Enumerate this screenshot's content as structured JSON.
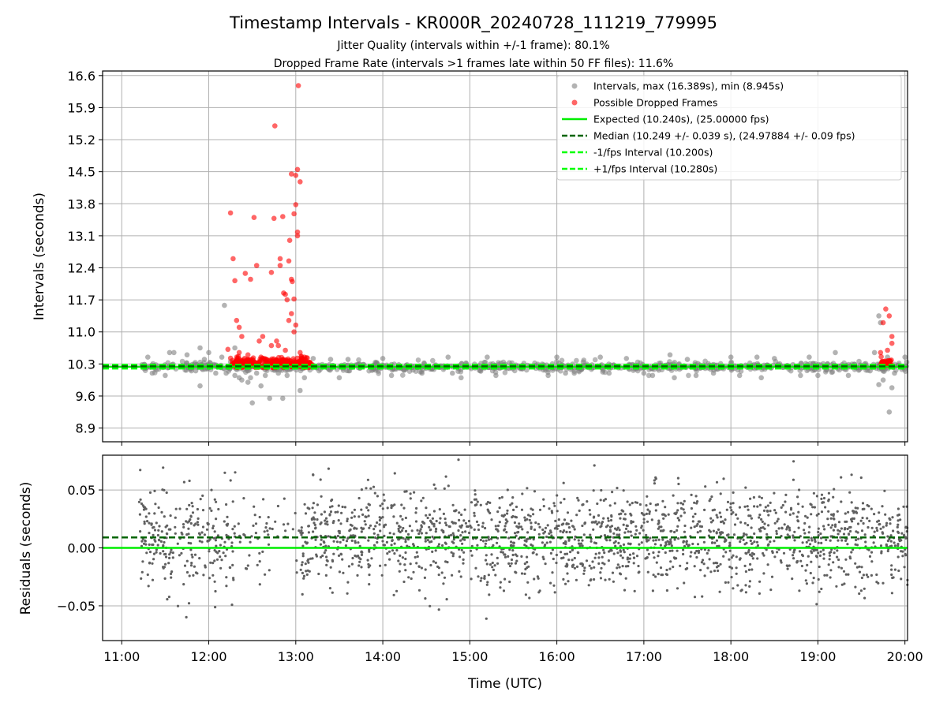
{
  "figure": {
    "title": "Timestamp Intervals - KR000R_20240728_111219_779995",
    "subtitle_1": "Jitter Quality (intervals within +/-1 frame): 80.1%",
    "subtitle_2": "Dropped Frame Rate (intervals >1 frames late within 50 FF files): 11.6%"
  },
  "colors": {
    "intervals": "#808080",
    "dropped": "#ff0000",
    "expected": "#00ee00",
    "median": "#006400",
    "fps_interval": "#00ff00",
    "residuals": "#606060"
  },
  "chart_data": [
    {
      "type": "scatter",
      "ylabel": "Intervals (seconds)",
      "xlim_hours": [
        10.78,
        20.03
      ],
      "ylim": [
        8.6,
        16.7
      ],
      "y_ticks": [
        8.9,
        9.6,
        10.3,
        11.0,
        11.7,
        12.4,
        13.1,
        13.8,
        14.5,
        15.2,
        15.9,
        16.6
      ],
      "y_tick_labels": [
        "8.9",
        "9.6",
        "10.3",
        "11.0",
        "11.7",
        "12.4",
        "13.1",
        "13.8",
        "14.5",
        "15.2",
        "15.9",
        "16.6"
      ],
      "grid": true,
      "legend_position": "top-right",
      "legend": [
        {
          "label": "Intervals, max (16.389s), min (8.945s)",
          "kind": "point",
          "color": "#808080"
        },
        {
          "label": "Possible Dropped Frames",
          "kind": "point",
          "color": "#ff0000"
        },
        {
          "label": "Expected (10.240s), (25.00000 fps)",
          "kind": "line",
          "color": "#00ee00"
        },
        {
          "label": "Median (10.249 +/- 0.039 s), (24.97884 +/- 0.09 fps)",
          "kind": "dashed",
          "color": "#006400"
        },
        {
          "label": "-1/fps Interval (10.200s)",
          "kind": "dashed",
          "color": "#00ff00"
        },
        {
          "label": "+1/fps Interval (10.280s)",
          "kind": "dashed",
          "color": "#00ff00"
        }
      ],
      "reference_lines": {
        "expected": 10.24,
        "median": 10.249,
        "minus_fps": 10.2,
        "plus_fps": 10.28
      },
      "series": [
        {
          "name": "Intervals",
          "style": "grey-point",
          "note_dense_band": {
            "start": 11.2,
            "end": 20.03,
            "center": 10.24,
            "spread": 0.08
          },
          "points": [
            [
              11.3,
              10.45
            ],
            [
              11.35,
              10.1
            ],
            [
              11.5,
              10.05
            ],
            [
              11.55,
              10.55
            ],
            [
              11.6,
              10.55
            ],
            [
              11.75,
              10.5
            ],
            [
              11.8,
              10.15
            ],
            [
              11.85,
              10.15
            ],
            [
              11.9,
              10.65
            ],
            [
              11.95,
              10.4
            ],
            [
              11.9,
              9.82
            ],
            [
              12.0,
              10.55
            ],
            [
              12.08,
              10.1
            ],
            [
              12.15,
              10.45
            ],
            [
              12.18,
              11.58
            ],
            [
              12.2,
              10.1
            ],
            [
              12.25,
              10.35
            ],
            [
              12.3,
              10.05
            ],
            [
              12.3,
              10.65
            ],
            [
              12.35,
              10.0
            ],
            [
              12.38,
              9.95
            ],
            [
              12.4,
              10.3
            ],
            [
              12.45,
              9.9
            ],
            [
              12.48,
              10.0
            ],
            [
              12.5,
              9.45
            ],
            [
              12.55,
              10.1
            ],
            [
              12.6,
              9.82
            ],
            [
              12.65,
              10.05
            ],
            [
              12.7,
              9.55
            ],
            [
              12.8,
              10.1
            ],
            [
              12.85,
              9.55
            ],
            [
              12.9,
              10.05
            ],
            [
              12.95,
              10.3
            ],
            [
              13.05,
              9.72
            ],
            [
              13.1,
              10.0
            ],
            [
              13.2,
              10.42
            ],
            [
              13.4,
              10.4
            ],
            [
              13.5,
              10.0
            ],
            [
              13.6,
              10.4
            ],
            [
              14.0,
              10.42
            ],
            [
              14.1,
              10.05
            ],
            [
              14.45,
              10.1
            ],
            [
              14.75,
              10.45
            ],
            [
              14.8,
              10.1
            ],
            [
              14.9,
              10.0
            ],
            [
              15.2,
              10.45
            ],
            [
              15.3,
              10.05
            ],
            [
              15.9,
              10.05
            ],
            [
              16.0,
              10.45
            ],
            [
              16.1,
              10.1
            ],
            [
              16.2,
              10.1
            ],
            [
              16.5,
              10.45
            ],
            [
              16.6,
              10.1
            ],
            [
              16.8,
              10.42
            ],
            [
              17.0,
              10.1
            ],
            [
              17.1,
              10.05
            ],
            [
              17.3,
              10.5
            ],
            [
              17.35,
              10.0
            ],
            [
              17.5,
              10.4
            ],
            [
              17.6,
              10.05
            ],
            [
              17.8,
              10.1
            ],
            [
              18.0,
              10.45
            ],
            [
              18.1,
              10.05
            ],
            [
              18.3,
              10.45
            ],
            [
              18.35,
              10.0
            ],
            [
              18.5,
              10.42
            ],
            [
              18.8,
              10.05
            ],
            [
              18.9,
              10.45
            ],
            [
              19.0,
              10.05
            ],
            [
              19.2,
              10.55
            ],
            [
              19.35,
              10.05
            ],
            [
              19.6,
              10.15
            ],
            [
              19.65,
              10.55
            ],
            [
              19.7,
              11.35
            ],
            [
              19.72,
              11.2
            ],
            [
              19.7,
              9.85
            ],
            [
              19.75,
              9.95
            ],
            [
              19.8,
              10.45
            ],
            [
              19.82,
              9.25
            ],
            [
              19.85,
              9.78
            ],
            [
              19.88,
              10.1
            ],
            [
              20.0,
              10.45
            ]
          ]
        },
        {
          "name": "Possible Dropped Frames",
          "style": "red-point",
          "note_dense_band": {
            "start": 12.25,
            "end": 13.2,
            "center": 10.32,
            "spread": 0.06
          },
          "points": [
            [
              12.22,
              10.62
            ],
            [
              12.25,
              13.6
            ],
            [
              12.28,
              12.6
            ],
            [
              12.3,
              12.12
            ],
            [
              12.32,
              11.25
            ],
            [
              12.35,
              11.1
            ],
            [
              12.38,
              10.9
            ],
            [
              12.42,
              12.28
            ],
            [
              12.48,
              12.15
            ],
            [
              12.52,
              13.5
            ],
            [
              12.55,
              12.45
            ],
            [
              12.58,
              10.8
            ],
            [
              12.62,
              10.9
            ],
            [
              12.72,
              12.3
            ],
            [
              12.75,
              13.48
            ],
            [
              12.76,
              15.5
            ],
            [
              12.78,
              10.8
            ],
            [
              12.8,
              10.7
            ],
            [
              12.82,
              12.6
            ],
            [
              12.82,
              12.45
            ],
            [
              12.85,
              13.52
            ],
            [
              12.86,
              11.85
            ],
            [
              12.88,
              11.82
            ],
            [
              12.9,
              11.7
            ],
            [
              12.92,
              12.55
            ],
            [
              12.93,
              13.0
            ],
            [
              12.95,
              12.15
            ],
            [
              12.96,
              12.1
            ],
            [
              12.95,
              14.45
            ],
            [
              12.98,
              11.72
            ],
            [
              12.98,
              13.58
            ],
            [
              13.0,
              13.78
            ],
            [
              13.0,
              14.42
            ],
            [
              13.0,
              11.15
            ],
            [
              13.02,
              13.1
            ],
            [
              13.02,
              13.18
            ],
            [
              13.02,
              14.55
            ],
            [
              13.03,
              16.38
            ],
            [
              13.05,
              14.28
            ],
            [
              13.05,
              10.55
            ],
            [
              12.72,
              10.7
            ],
            [
              12.88,
              10.6
            ],
            [
              12.95,
              11.4
            ],
            [
              12.92,
              11.25
            ],
            [
              12.98,
              11.0
            ],
            [
              12.6,
              10.45
            ],
            [
              12.45,
              10.5
            ],
            [
              12.35,
              10.55
            ],
            [
              13.1,
              10.45
            ],
            [
              19.72,
              10.55
            ],
            [
              19.75,
              11.2
            ],
            [
              19.78,
              11.5
            ],
            [
              19.8,
              10.6
            ],
            [
              19.82,
              11.35
            ],
            [
              19.85,
              10.9
            ],
            [
              19.85,
              10.75
            ],
            [
              19.75,
              10.35
            ]
          ]
        }
      ]
    },
    {
      "type": "scatter",
      "xlabel": "Time (UTC)",
      "ylabel": "Residuals (seconds)",
      "xlim_hours": [
        10.78,
        20.03
      ],
      "ylim": [
        -0.08,
        0.08
      ],
      "y_ticks": [
        -0.05,
        0.0,
        0.05
      ],
      "y_tick_labels": [
        "−0.05",
        "0.00",
        "0.05"
      ],
      "x_ticks": [
        11,
        12,
        13,
        14,
        15,
        16,
        17,
        18,
        19,
        20
      ],
      "x_tick_labels": [
        "11:00",
        "12:00",
        "13:00",
        "14:00",
        "15:00",
        "16:00",
        "17:00",
        "18:00",
        "19:00",
        "20:00"
      ],
      "grid": true,
      "reference_lines": {
        "zero": 0.0,
        "median": 0.009
      },
      "series": [
        {
          "name": "Residuals",
          "style": "small-grey-point",
          "note_distribution": {
            "start": 11.2,
            "end": 20.03,
            "center": 0.008,
            "spread": 0.022,
            "gap": [
              12.3,
              13.05
            ]
          }
        }
      ]
    }
  ]
}
